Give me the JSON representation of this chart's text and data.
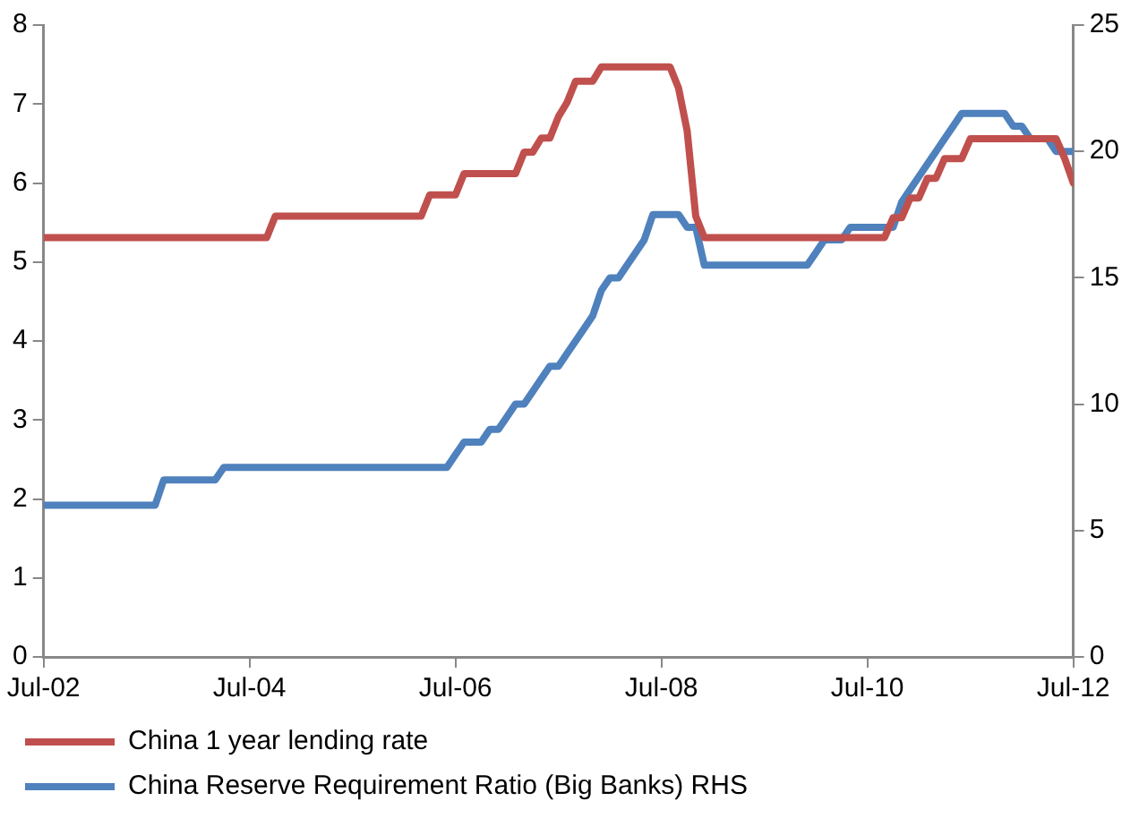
{
  "chart_data": {
    "type": "line",
    "xlim": [
      "2002-07",
      "2012-07"
    ],
    "xticks": [
      {
        "value": "2002-07",
        "label": "Jul-02"
      },
      {
        "value": "2004-07",
        "label": "Jul-04"
      },
      {
        "value": "2006-07",
        "label": "Jul-06"
      },
      {
        "value": "2008-07",
        "label": "Jul-08"
      },
      {
        "value": "2010-07",
        "label": "Jul-10"
      },
      {
        "value": "2012-07",
        "label": "Jul-12"
      }
    ],
    "ylim": [
      0,
      8
    ],
    "yticks": [
      0,
      1,
      2,
      3,
      4,
      5,
      6,
      7,
      8
    ],
    "y2lim": [
      0,
      25
    ],
    "y2ticks": [
      0,
      5,
      10,
      15,
      20,
      25
    ],
    "grid": false,
    "legend": "bottom",
    "marker": "none",
    "line_style": "solid",
    "series": [
      {
        "name": "China 1 year lending rate",
        "color": "#c0504d",
        "x": [
          "2002-07",
          "2004-09",
          "2004-10",
          "2006-03",
          "2006-04",
          "2006-07",
          "2006-08",
          "2007-02",
          "2007-03",
          "2007-04",
          "2007-05",
          "2007-06",
          "2007-07",
          "2007-08",
          "2007-09",
          "2007-11",
          "2007-12",
          "2008-08",
          "2008-09",
          "2008-10",
          "2008-11",
          "2008-12",
          "2010-09",
          "2010-10",
          "2010-11",
          "2010-12",
          "2011-01",
          "2011-02",
          "2011-03",
          "2011-04",
          "2011-06",
          "2011-07",
          "2012-05",
          "2012-06",
          "2012-07"
        ],
        "values": [
          5.31,
          5.31,
          5.58,
          5.58,
          5.85,
          5.85,
          6.12,
          6.12,
          6.39,
          6.39,
          6.57,
          6.57,
          6.84,
          7.02,
          7.29,
          7.29,
          7.47,
          7.47,
          7.2,
          6.66,
          5.58,
          5.31,
          5.31,
          5.56,
          5.56,
          5.81,
          5.81,
          6.06,
          6.06,
          6.31,
          6.31,
          6.56,
          6.56,
          6.31,
          6.0
        ]
      },
      {
        "name": "China Reserve Requirement Ratio (Big Banks) RHS",
        "color": "#4f81bd",
        "axis": "y2",
        "x": [
          "2002-07",
          "2003-08",
          "2003-09",
          "2004-03",
          "2004-04",
          "2006-06",
          "2006-07",
          "2006-08",
          "2006-10",
          "2006-11",
          "2006-12",
          "2007-01",
          "2007-02",
          "2007-03",
          "2007-04",
          "2007-05",
          "2007-06",
          "2007-07",
          "2007-08",
          "2007-09",
          "2007-10",
          "2007-11",
          "2007-12",
          "2008-01",
          "2008-02",
          "2008-03",
          "2008-04",
          "2008-05",
          "2008-06",
          "2008-09",
          "2008-10",
          "2008-11",
          "2008-12",
          "2009-12",
          "2010-01",
          "2010-02",
          "2010-04",
          "2010-05",
          "2010-10",
          "2010-11",
          "2010-12",
          "2011-01",
          "2011-02",
          "2011-03",
          "2011-04",
          "2011-05",
          "2011-06",
          "2011-11",
          "2011-12",
          "2012-01",
          "2012-02",
          "2012-04",
          "2012-05",
          "2012-07"
        ],
        "values": [
          6,
          6,
          7,
          7,
          7.5,
          7.5,
          8,
          8.5,
          8.5,
          9,
          9,
          9.5,
          10,
          10,
          10.5,
          11,
          11.5,
          11.5,
          12,
          12.5,
          13,
          13.5,
          14.5,
          15,
          15,
          15.5,
          16,
          16.5,
          17.5,
          17.5,
          17,
          17,
          15.5,
          15.5,
          16,
          16.5,
          16.5,
          17,
          17,
          18,
          18.5,
          19,
          19.5,
          20,
          20.5,
          21,
          21.5,
          21.5,
          21,
          21,
          20.5,
          20.5,
          20,
          20
        ]
      }
    ]
  }
}
